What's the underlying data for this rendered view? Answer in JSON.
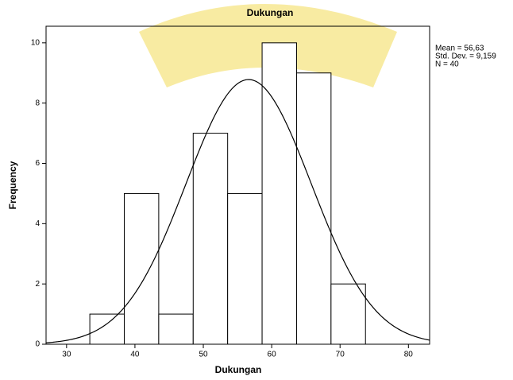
{
  "chart_data": {
    "type": "histogram",
    "title": "Dukungan",
    "x_label": "Dukungan",
    "y_label": "Frequency",
    "bins": [
      33.4,
      38.44,
      43.48,
      48.52,
      53.56,
      58.6,
      63.64,
      68.68,
      73.72
    ],
    "values": [
      1,
      5,
      1,
      7,
      5,
      10,
      9,
      2
    ],
    "color": "#ffffff",
    "xlim": [
      27.0,
      83.1
    ],
    "xticks": [
      30,
      40,
      50,
      60,
      70,
      80
    ],
    "ylim": [
      0,
      10.55
    ],
    "yticks": [
      0,
      2,
      4,
      6,
      8,
      10
    ],
    "normal_curve": {
      "mean": {
        "value": 56.63,
        "label": "Mean = 56,63"
      },
      "std": {
        "value": 9.159,
        "label": "Std. Dev. = 9,159"
      },
      "n": {
        "value": 40,
        "label": "N = 40"
      }
    }
  }
}
